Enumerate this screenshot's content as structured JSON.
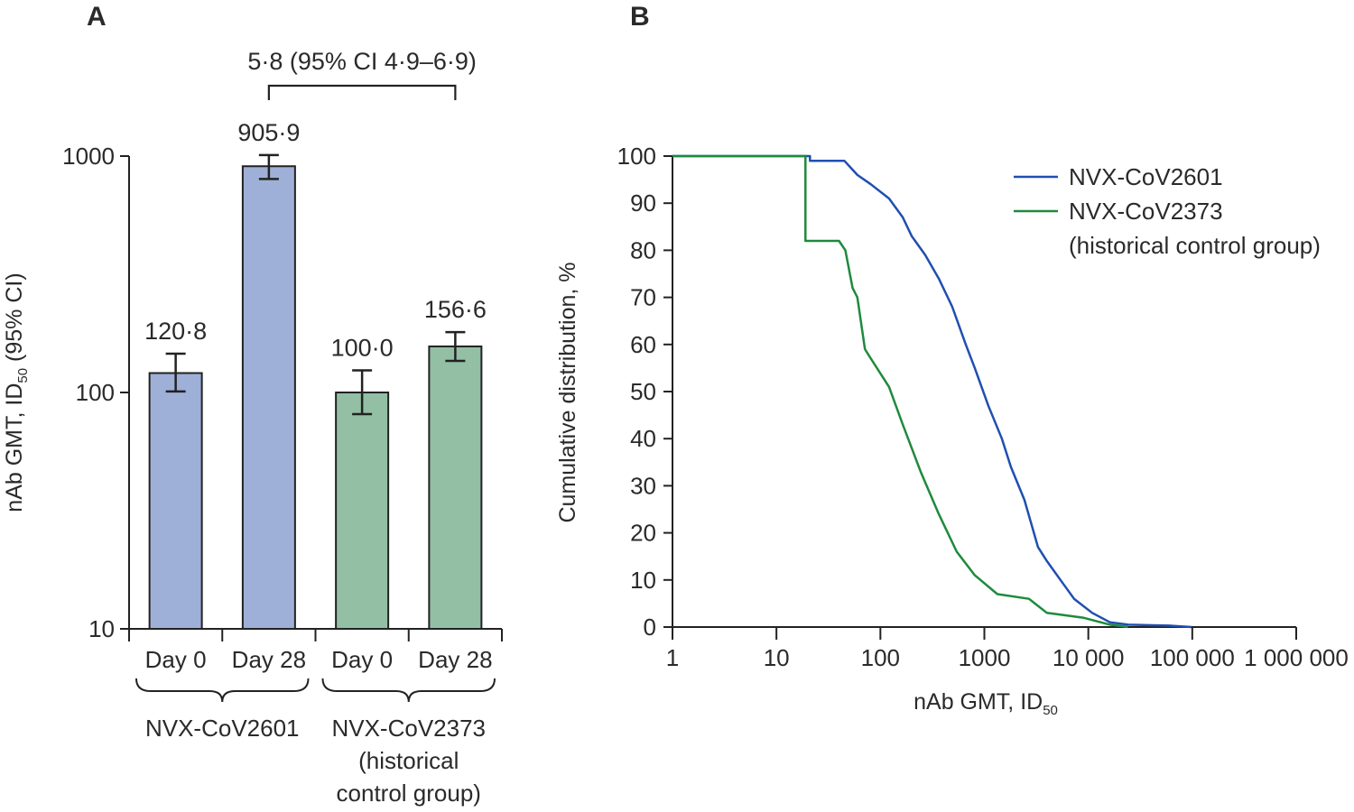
{
  "chart_data": [
    {
      "panel": "A",
      "type": "bar",
      "ylabel": "nAb GMT, ID",
      "ylabel_sub": "50",
      "ylabel_suffix": " (95% CI)",
      "yscale": "log",
      "ylim": [
        10,
        1000
      ],
      "yticks": [
        {
          "value": 10,
          "label": "10"
        },
        {
          "value": 100,
          "label": "100"
        },
        {
          "value": 1000,
          "label": "1000"
        }
      ],
      "categories": [
        "Day 0",
        "Day 28",
        "Day 0",
        "Day 28"
      ],
      "groups": [
        {
          "label_lines": [
            "NVX-CoV2601"
          ],
          "bars": [
            0,
            1
          ]
        },
        {
          "label_lines": [
            "NVX-CoV2373",
            "(historical",
            "control group)"
          ],
          "bars": [
            2,
            3
          ]
        }
      ],
      "bars": [
        {
          "category": "Day 0",
          "group": "NVX-CoV2601",
          "value": 120.8,
          "label": "120·8",
          "ci": [
            101,
            146
          ],
          "color": "#9fb0d8"
        },
        {
          "category": "Day 28",
          "group": "NVX-CoV2601",
          "value": 905.9,
          "label": "905·9",
          "ci": [
            800,
            1010
          ],
          "color": "#9fb0d8"
        },
        {
          "category": "Day 0",
          "group": "NVX-CoV2373",
          "value": 100.0,
          "label": "100·0",
          "ci": [
            81,
            124
          ],
          "color": "#93bfa5"
        },
        {
          "category": "Day 28",
          "group": "NVX-CoV2373",
          "value": 156.6,
          "label": "156·6",
          "ci": [
            136,
            180
          ],
          "color": "#93bfa5"
        }
      ],
      "comparison": {
        "from_bar": 1,
        "to_bar": 3,
        "label": "5·8 (95% CI 4·9–6·9)"
      }
    },
    {
      "panel": "B",
      "type": "line",
      "xlabel": "nAb GMT, ID",
      "xlabel_sub": "50",
      "ylabel": "Cumulative distribution, %",
      "xscale": "log",
      "xlim": [
        1,
        1000000
      ],
      "ylim": [
        0,
        100
      ],
      "xticks": [
        {
          "value": 1,
          "label": "1"
        },
        {
          "value": 10,
          "label": "10"
        },
        {
          "value": 100,
          "label": "100"
        },
        {
          "value": 1000,
          "label": "1000"
        },
        {
          "value": 10000,
          "label": "10 000"
        },
        {
          "value": 100000,
          "label": "100 000"
        },
        {
          "value": 1000000,
          "label": "1 000 000"
        }
      ],
      "yticks": [
        0,
        10,
        20,
        30,
        40,
        50,
        60,
        70,
        80,
        90,
        100
      ],
      "legend_position": "top-right",
      "series": [
        {
          "name": "NVX-CoV2601",
          "legend_lines": [
            "NVX-CoV2601"
          ],
          "color": "#1f4fb0",
          "points": [
            [
              1,
              100
            ],
            [
              21,
              100
            ],
            [
              21,
              99
            ],
            [
              45,
              99
            ],
            [
              60,
              96
            ],
            [
              81,
              94
            ],
            [
              121,
              91
            ],
            [
              164,
              87
            ],
            [
              200,
              83
            ],
            [
              270,
              79
            ],
            [
              364,
              74
            ],
            [
              491,
              68
            ],
            [
              662,
              60
            ],
            [
              809,
              55
            ],
            [
              1092,
              47
            ],
            [
              1473,
              40
            ],
            [
              1800,
              34
            ],
            [
              2429,
              27
            ],
            [
              3279,
              17
            ],
            [
              4000,
              14
            ],
            [
              5400,
              10
            ],
            [
              7300,
              6
            ],
            [
              10900,
              3
            ],
            [
              16200,
              1
            ],
            [
              24200,
              0.5
            ],
            [
              59400,
              0.3
            ],
            [
              98000,
              0
            ]
          ]
        },
        {
          "name": "NVX-CoV2373 (historical control group)",
          "legend_lines": [
            "NVX-CoV2373",
            "(historical control group)"
          ],
          "color": "#1e8a3c",
          "points": [
            [
              1,
              100
            ],
            [
              19,
              100
            ],
            [
              19,
              82
            ],
            [
              40,
              82
            ],
            [
              46,
              80
            ],
            [
              54,
              72
            ],
            [
              60,
              70
            ],
            [
              71,
              59
            ],
            [
              81,
              57
            ],
            [
              121,
              51
            ],
            [
              164,
              43
            ],
            [
              244,
              33
            ],
            [
              364,
              24
            ],
            [
              542,
              16
            ],
            [
              809,
              11
            ],
            [
              1334,
              7
            ],
            [
              2685,
              6
            ],
            [
              4000,
              3
            ],
            [
              8900,
              2
            ],
            [
              16200,
              0.5
            ],
            [
              24200,
              0
            ]
          ]
        }
      ]
    }
  ]
}
